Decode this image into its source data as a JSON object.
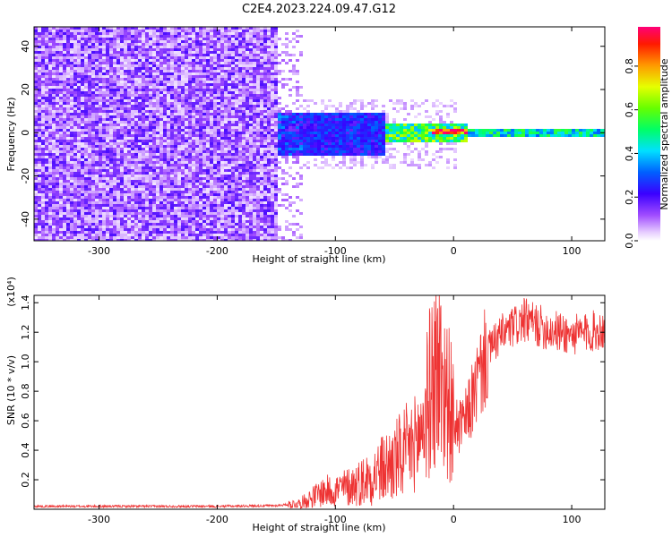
{
  "title": "C2E4.2023.224.09.47.G12",
  "chart_data": [
    {
      "type": "heatmap",
      "xlabel": "Height of straight line (km)",
      "ylabel": "Frequency (Hz)",
      "xlim": [
        -355,
        128
      ],
      "ylim": [
        -50,
        49
      ],
      "x_ticks": [
        -300,
        -200,
        -100,
        0,
        100
      ],
      "x_tick_labels": [
        "-300",
        "-200",
        "-100",
        "0",
        "100"
      ],
      "y_ticks": [
        -40,
        -20,
        0,
        20,
        40
      ],
      "y_tick_labels": [
        "-40",
        "-20",
        "0",
        "20",
        "40"
      ],
      "colorbar": {
        "label": "Normalized spectral amplitude",
        "range": [
          0,
          0.98
        ],
        "ticks": [
          0,
          0.2,
          0.4,
          0.6,
          0.8
        ],
        "tick_labels": [
          "0.0",
          "0.2",
          "0.4",
          "0.6",
          "0.8"
        ]
      },
      "regions": [
        {
          "x_range": [
            -355,
            -150
          ],
          "freq_range": [
            -50,
            49
          ],
          "amplitude": 0.12
        },
        {
          "x_range": [
            -150,
            -60
          ],
          "freq_range": [
            -10,
            10
          ],
          "amplitude": 0.25
        },
        {
          "x_range": [
            -60,
            10
          ],
          "freq_range": [
            -4,
            5
          ],
          "amplitude": 0.55
        },
        {
          "x_range": [
            -20,
            10
          ],
          "freq_range": [
            0,
            2
          ],
          "amplitude": 0.95
        },
        {
          "x_range": [
            10,
            128
          ],
          "freq_range": [
            -1,
            3
          ],
          "amplitude": 0.45
        }
      ]
    },
    {
      "type": "line",
      "xlabel": "Height of straight line (km)",
      "ylabel": "SNR (10 * v/v)",
      "y_multiplier": "(x10⁴)",
      "xlim": [
        -355,
        128
      ],
      "ylim": [
        0,
        14500
      ],
      "x_ticks": [
        -300,
        -200,
        -100,
        0,
        100
      ],
      "x_tick_labels": [
        "-300",
        "-200",
        "-100",
        "0",
        "100"
      ],
      "y_ticks": [
        2000,
        4000,
        6000,
        8000,
        10000,
        12000,
        14000
      ],
      "y_tick_labels": [
        "0.2",
        "0.4",
        "0.6",
        "0.8",
        "1.0",
        "1.2",
        "1.4"
      ],
      "series": [
        {
          "color": "#ee3333",
          "x": [
            -355,
            -300,
            -250,
            -200,
            -150,
            -130,
            -120,
            -110,
            -100,
            -90,
            -80,
            -70,
            -60,
            -50,
            -40,
            -30,
            -25,
            -20,
            -15,
            -10,
            -5,
            0,
            5,
            10,
            15,
            20,
            25,
            30,
            40,
            50,
            60,
            70,
            80,
            90,
            100,
            110,
            120,
            128
          ],
          "y": [
            200,
            200,
            200,
            200,
            250,
            400,
            800,
            1200,
            1300,
            1500,
            1800,
            2200,
            2700,
            3200,
            3800,
            4700,
            6000,
            8000,
            9500,
            9000,
            7500,
            6000,
            5500,
            6000,
            7200,
            8500,
            9800,
            10800,
            11800,
            12300,
            12800,
            12500,
            12200,
            12000,
            11800,
            11900,
            12100,
            12200
          ]
        }
      ]
    }
  ]
}
